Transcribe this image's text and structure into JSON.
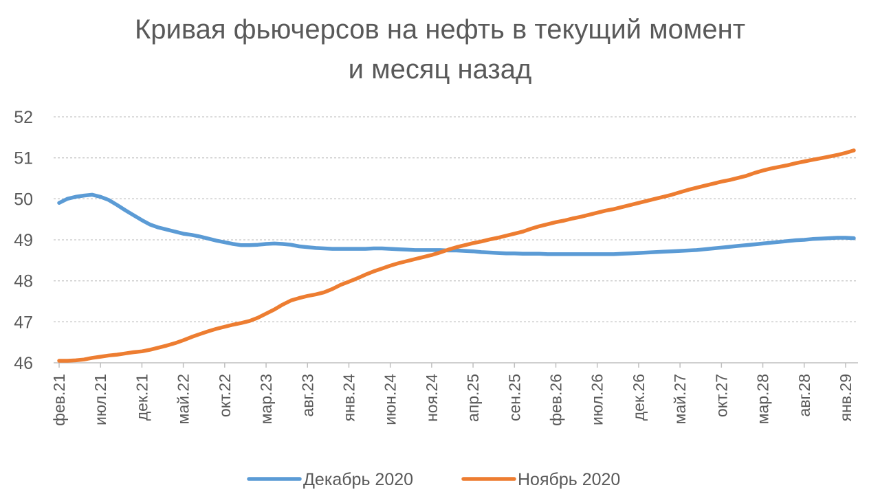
{
  "chart_data": {
    "type": "line",
    "title": [
      "Кривая фьючерсов на нефть в текущий момент",
      "и месяц назад"
    ],
    "xlabel": "",
    "ylabel": "",
    "ylim": [
      46,
      52
    ],
    "yticks": [
      46,
      47,
      48,
      49,
      50,
      51,
      52
    ],
    "grid": true,
    "legend_position": "bottom",
    "x_tick_labels": [
      "фев.21",
      "июл.21",
      "дек.21",
      "май.22",
      "окт.22",
      "мар.23",
      "авг.23",
      "янв.24",
      "июн.24",
      "ноя.24",
      "апр.25",
      "сен.25",
      "фев.26",
      "июл.26",
      "дек.26",
      "май.27",
      "окт.27",
      "мар.28",
      "авг.28",
      "янв.29"
    ],
    "x_count": 97,
    "series": [
      {
        "name": "Декабрь 2020",
        "color": "#5B9BD5",
        "values": [
          49.9,
          50.0,
          50.05,
          50.08,
          50.1,
          50.05,
          49.97,
          49.85,
          49.72,
          49.6,
          49.48,
          49.37,
          49.3,
          49.25,
          49.2,
          49.15,
          49.12,
          49.08,
          49.03,
          48.98,
          48.94,
          48.9,
          48.87,
          48.87,
          48.88,
          48.9,
          48.91,
          48.9,
          48.88,
          48.84,
          48.82,
          48.8,
          48.79,
          48.78,
          48.78,
          48.78,
          48.78,
          48.78,
          48.79,
          48.79,
          48.78,
          48.77,
          48.76,
          48.75,
          48.75,
          48.75,
          48.75,
          48.74,
          48.74,
          48.73,
          48.72,
          48.7,
          48.69,
          48.68,
          48.67,
          48.67,
          48.66,
          48.66,
          48.66,
          48.65,
          48.65,
          48.65,
          48.65,
          48.65,
          48.65,
          48.65,
          48.65,
          48.65,
          48.66,
          48.67,
          48.68,
          48.69,
          48.7,
          48.71,
          48.72,
          48.73,
          48.74,
          48.75,
          48.77,
          48.79,
          48.81,
          48.83,
          48.85,
          48.87,
          48.89,
          48.91,
          48.93,
          48.95,
          48.97,
          48.99,
          49.0,
          49.02,
          49.03,
          49.04,
          49.05,
          49.05,
          49.04
        ]
      },
      {
        "name": "Ноябрь 2020",
        "color": "#ED7D31",
        "values": [
          46.05,
          46.05,
          46.06,
          46.08,
          46.12,
          46.15,
          46.18,
          46.2,
          46.23,
          46.26,
          46.28,
          46.32,
          46.37,
          46.42,
          46.48,
          46.55,
          46.63,
          46.7,
          46.77,
          46.83,
          46.88,
          46.93,
          46.97,
          47.02,
          47.1,
          47.2,
          47.3,
          47.42,
          47.52,
          47.58,
          47.63,
          47.67,
          47.72,
          47.8,
          47.9,
          47.98,
          48.06,
          48.15,
          48.23,
          48.3,
          48.37,
          48.43,
          48.48,
          48.53,
          48.58,
          48.63,
          48.69,
          48.76,
          48.82,
          48.87,
          48.92,
          48.96,
          49.01,
          49.05,
          49.1,
          49.15,
          49.2,
          49.27,
          49.33,
          49.38,
          49.43,
          49.47,
          49.52,
          49.56,
          49.61,
          49.66,
          49.71,
          49.75,
          49.8,
          49.85,
          49.9,
          49.95,
          50.0,
          50.05,
          50.1,
          50.16,
          50.22,
          50.27,
          50.32,
          50.37,
          50.42,
          50.46,
          50.51,
          50.56,
          50.63,
          50.69,
          50.74,
          50.78,
          50.82,
          50.87,
          50.91,
          50.95,
          50.99,
          51.03,
          51.07,
          51.12,
          51.18
        ]
      }
    ]
  }
}
